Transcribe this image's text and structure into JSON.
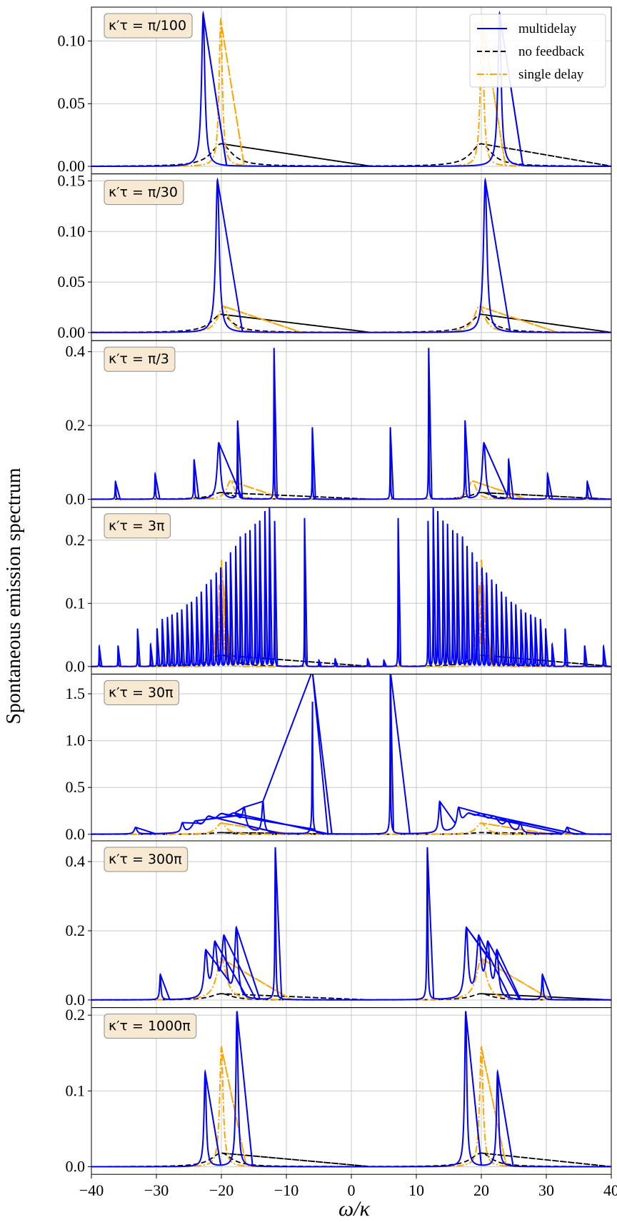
{
  "chart_data": {
    "type": "line",
    "ylabel": "Spontaneous emission spectrum",
    "xlabel": "ω/κ",
    "xlim": [
      -40,
      40
    ],
    "x_ticks": [
      -40,
      -30,
      -20,
      -10,
      0,
      10,
      20,
      30,
      40
    ],
    "x_tick_labels": [
      "−40",
      "−30",
      "−20",
      "−10",
      "0",
      "10",
      "20",
      "30",
      "40"
    ],
    "grid": true,
    "legend_placement": "top-right (first panel)",
    "legend": [
      {
        "label": "multidelay",
        "color": "#0000ff",
        "style": "solid"
      },
      {
        "label": "no feedback",
        "color": "#000000",
        "style": "dashed"
      },
      {
        "label": "single delay",
        "color": "#ffa500",
        "style": "dashdot"
      }
    ],
    "panels": [
      {
        "tag": "κ′τ = π/100",
        "ylim": [
          -0.006,
          0.127
        ],
        "y_ticks": [
          0.0,
          0.05,
          0.1
        ],
        "y_tick_labels": [
          "0.00",
          "0.05",
          "0.10"
        ],
        "no_feedback_peaks": [
          [
            -20,
            0.018,
            1.9
          ],
          [
            20,
            0.018,
            1.9
          ]
        ],
        "single_delay_peaks": [
          [
            -20.1,
            0.117,
            0.3
          ],
          [
            20.1,
            0.117,
            0.3
          ]
        ],
        "multidelay_peaks": [
          [
            -22.8,
            0.122,
            0.3
          ],
          [
            22.8,
            0.122,
            0.3
          ]
        ]
      },
      {
        "tag": "κ′τ = π/30",
        "ylim": [
          -0.008,
          0.157
        ],
        "y_ticks": [
          0.0,
          0.05,
          0.1,
          0.15
        ],
        "y_tick_labels": [
          "0.00",
          "0.05",
          "0.10",
          "0.15"
        ],
        "no_feedback_peaks": [
          [
            -20,
            0.018,
            1.9
          ],
          [
            20,
            0.018,
            1.9
          ]
        ],
        "single_delay_peaks": [
          [
            -19.7,
            0.026,
            1.0
          ],
          [
            19.7,
            0.026,
            1.0
          ]
        ],
        "multidelay_peaks": [
          [
            -20.6,
            0.151,
            0.32
          ],
          [
            20.6,
            0.151,
            0.32
          ]
        ]
      },
      {
        "tag": "κ′τ = π/3",
        "ylim": [
          -0.022,
          0.43
        ],
        "y_ticks": [
          0.0,
          0.2,
          0.4
        ],
        "y_tick_labels": [
          "0.0",
          "0.2",
          "0.4"
        ],
        "no_feedback_peaks": [
          [
            -20,
            0.018,
            1.9
          ],
          [
            20,
            0.018,
            1.9
          ]
        ],
        "single_delay_peaks": [
          [
            -18.6,
            0.05,
            0.7
          ],
          [
            18.6,
            0.05,
            0.7
          ]
        ],
        "multidelay_peaks": [
          [
            -36.3,
            0.048,
            0.06
          ],
          [
            -30.2,
            0.069,
            0.06
          ],
          [
            -24.2,
            0.107,
            0.06
          ],
          [
            -20.4,
            0.153,
            0.3
          ],
          [
            -17.5,
            0.212,
            0.06
          ],
          [
            -11.9,
            0.41,
            0.04
          ],
          [
            -6.0,
            0.195,
            0.04
          ],
          [
            6.0,
            0.195,
            0.04
          ],
          [
            11.9,
            0.41,
            0.04
          ],
          [
            17.5,
            0.212,
            0.06
          ],
          [
            20.4,
            0.153,
            0.3
          ],
          [
            24.2,
            0.107,
            0.06
          ],
          [
            30.2,
            0.069,
            0.06
          ],
          [
            36.3,
            0.048,
            0.06
          ]
        ]
      },
      {
        "tag": "κ′τ = 3π",
        "ylim": [
          -0.012,
          0.252
        ],
        "y_ticks": [
          0.0,
          0.1,
          0.2
        ],
        "y_tick_labels": [
          "0.0",
          "0.1",
          "0.2"
        ],
        "no_feedback_peaks": [
          [
            -20,
            0.018,
            1.9
          ],
          [
            20,
            0.018,
            1.9
          ]
        ],
        "single_delay_peaks": [
          [
            -20.0,
            0.16,
            0.06
          ],
          [
            -19.66,
            0.12,
            0.06
          ],
          [
            -20.34,
            0.12,
            0.06
          ],
          [
            -19.33,
            0.08,
            0.06
          ],
          [
            -20.67,
            0.08,
            0.06
          ],
          [
            -19.0,
            0.045,
            0.06
          ],
          [
            -21.0,
            0.045,
            0.06
          ],
          [
            -18.66,
            0.025,
            0.06
          ],
          [
            -21.34,
            0.025,
            0.06
          ],
          [
            20.0,
            0.16,
            0.06
          ],
          [
            19.66,
            0.12,
            0.06
          ],
          [
            20.34,
            0.12,
            0.06
          ],
          [
            19.33,
            0.08,
            0.06
          ],
          [
            20.67,
            0.08,
            0.06
          ],
          [
            19.0,
            0.045,
            0.06
          ],
          [
            21.0,
            0.045,
            0.06
          ],
          [
            18.66,
            0.025,
            0.06
          ],
          [
            21.34,
            0.025,
            0.06
          ]
        ],
        "multidelay_peaks": [
          [
            -38.8,
            0.032,
            0.03
          ],
          [
            -35.9,
            0.033,
            0.03
          ],
          [
            -32.9,
            0.06,
            0.03
          ],
          [
            -30.9,
            0.035,
            0.03
          ],
          [
            -29.9,
            0.06,
            0.03
          ],
          [
            -29.1,
            0.075,
            0.03
          ],
          [
            -28.3,
            0.078,
            0.03
          ],
          [
            -27.6,
            0.082,
            0.03
          ],
          [
            -26.8,
            0.085,
            0.03
          ],
          [
            -26.1,
            0.09,
            0.03
          ],
          [
            -25.3,
            0.098,
            0.03
          ],
          [
            -24.6,
            0.102,
            0.03
          ],
          [
            -23.8,
            0.11,
            0.03
          ],
          [
            -23.1,
            0.118,
            0.03
          ],
          [
            -22.3,
            0.13,
            0.03
          ],
          [
            -21.6,
            0.137,
            0.03
          ],
          [
            -20.8,
            0.148,
            0.03
          ],
          [
            -20.1,
            0.156,
            0.03
          ],
          [
            -19.3,
            0.165,
            0.03
          ],
          [
            -18.6,
            0.18,
            0.03
          ],
          [
            -17.8,
            0.19,
            0.03
          ],
          [
            -17.1,
            0.205,
            0.03
          ],
          [
            -16.3,
            0.21,
            0.03
          ],
          [
            -15.6,
            0.215,
            0.03
          ],
          [
            -14.8,
            0.225,
            0.03
          ],
          [
            -14.1,
            0.23,
            0.03
          ],
          [
            -13.3,
            0.245,
            0.03
          ],
          [
            -12.6,
            0.25,
            0.03
          ],
          [
            -11.8,
            0.23,
            0.03
          ],
          [
            -7.2,
            0.235,
            0.03
          ],
          [
            -5.0,
            0.01,
            0.03
          ],
          [
            -2.5,
            0.012,
            0.03
          ],
          [
            2.5,
            0.012,
            0.03
          ],
          [
            5.0,
            0.01,
            0.03
          ],
          [
            7.2,
            0.235,
            0.03
          ],
          [
            11.8,
            0.23,
            0.03
          ],
          [
            12.6,
            0.25,
            0.03
          ],
          [
            13.3,
            0.245,
            0.03
          ],
          [
            14.1,
            0.23,
            0.03
          ],
          [
            14.8,
            0.225,
            0.03
          ],
          [
            15.6,
            0.215,
            0.03
          ],
          [
            16.3,
            0.21,
            0.03
          ],
          [
            17.1,
            0.205,
            0.03
          ],
          [
            17.8,
            0.19,
            0.03
          ],
          [
            18.6,
            0.18,
            0.03
          ],
          [
            19.3,
            0.165,
            0.03
          ],
          [
            20.1,
            0.156,
            0.03
          ],
          [
            20.8,
            0.148,
            0.03
          ],
          [
            21.6,
            0.137,
            0.03
          ],
          [
            22.3,
            0.13,
            0.03
          ],
          [
            23.1,
            0.118,
            0.03
          ],
          [
            23.8,
            0.11,
            0.03
          ],
          [
            24.6,
            0.102,
            0.03
          ],
          [
            25.3,
            0.098,
            0.03
          ],
          [
            26.1,
            0.09,
            0.03
          ],
          [
            26.8,
            0.085,
            0.03
          ],
          [
            27.6,
            0.082,
            0.03
          ],
          [
            28.3,
            0.078,
            0.03
          ],
          [
            29.1,
            0.075,
            0.03
          ],
          [
            29.9,
            0.06,
            0.03
          ],
          [
            30.9,
            0.035,
            0.03
          ],
          [
            32.9,
            0.06,
            0.03
          ],
          [
            35.9,
            0.033,
            0.03
          ],
          [
            38.8,
            0.032,
            0.03
          ]
        ]
      },
      {
        "tag": "κ′τ = 30π",
        "ylim": [
          -0.07,
          1.71
        ],
        "y_ticks": [
          0.0,
          0.5,
          1.0,
          1.5
        ],
        "y_tick_labels": [
          "0.0",
          "0.5",
          "1.0",
          "1.5"
        ],
        "no_feedback_peaks": [
          [
            -20,
            0.018,
            1.9
          ],
          [
            20,
            0.018,
            1.9
          ]
        ],
        "single_delay_peaks": [
          [
            -20.0,
            0.12,
            0.9
          ],
          [
            20.0,
            0.12,
            0.9
          ]
        ],
        "multidelay_peaks": [
          [
            -33.2,
            0.07,
            0.25
          ],
          [
            -26.0,
            0.1,
            0.25
          ],
          [
            -24.0,
            0.1,
            0.6
          ],
          [
            -22.0,
            0.13,
            0.9
          ],
          [
            -20.0,
            0.15,
            1.2
          ],
          [
            -18.0,
            0.17,
            1.2
          ],
          [
            -16.5,
            0.2,
            0.3
          ],
          [
            -13.6,
            0.33,
            0.2
          ],
          [
            -6.0,
            1.64,
            0.04
          ],
          [
            -6.0,
            0.1,
            0.25
          ],
          [
            6.0,
            1.64,
            0.04
          ],
          [
            6.0,
            0.1,
            0.25
          ],
          [
            13.6,
            0.33,
            0.2
          ],
          [
            16.5,
            0.2,
            0.3
          ],
          [
            18.0,
            0.17,
            1.2
          ],
          [
            20.0,
            0.15,
            1.2
          ],
          [
            22.0,
            0.13,
            0.9
          ],
          [
            24.0,
            0.1,
            0.6
          ],
          [
            26.0,
            0.1,
            0.25
          ],
          [
            33.2,
            0.07,
            0.25
          ]
        ]
      },
      {
        "tag": "κ′τ = 300π",
        "ylim": [
          -0.022,
          0.46
        ],
        "y_ticks": [
          0.0,
          0.2,
          0.4
        ],
        "y_tick_labels": [
          "0.0",
          "0.2",
          "0.4"
        ],
        "no_feedback_peaks": [
          [
            -20,
            0.018,
            1.9
          ],
          [
            20,
            0.018,
            1.9
          ]
        ],
        "single_delay_peaks": [
          [
            -20.0,
            0.12,
            0.9
          ],
          [
            20.0,
            0.12,
            0.9
          ]
        ],
        "multidelay_peaks": [
          [
            -29.4,
            0.073,
            0.12
          ],
          [
            -22.4,
            0.13,
            0.3
          ],
          [
            -21.0,
            0.15,
            0.4
          ],
          [
            -19.6,
            0.17,
            0.4
          ],
          [
            -17.7,
            0.2,
            0.3
          ],
          [
            -11.7,
            0.44,
            0.08
          ],
          [
            11.7,
            0.44,
            0.08
          ],
          [
            17.7,
            0.2,
            0.3
          ],
          [
            19.6,
            0.17,
            0.4
          ],
          [
            21.0,
            0.15,
            0.4
          ],
          [
            22.4,
            0.13,
            0.3
          ],
          [
            29.4,
            0.073,
            0.12
          ]
        ]
      },
      {
        "tag": "κ′τ = 1000π",
        "ylim": [
          -0.01,
          0.21
        ],
        "y_ticks": [
          0.0,
          0.1,
          0.2
        ],
        "y_tick_labels": [
          "0.0",
          "0.1",
          "0.2"
        ],
        "no_feedback_peaks": [
          [
            -20,
            0.018,
            1.9
          ],
          [
            20,
            0.018,
            1.9
          ]
        ],
        "single_delay_peaks": [
          [
            -20.0,
            0.158,
            0.32
          ],
          [
            20.0,
            0.158,
            0.32
          ]
        ],
        "multidelay_peaks": [
          [
            -22.5,
            0.125,
            0.2
          ],
          [
            -17.6,
            0.205,
            0.2
          ],
          [
            17.6,
            0.205,
            0.2
          ],
          [
            22.5,
            0.125,
            0.2
          ]
        ]
      }
    ]
  }
}
